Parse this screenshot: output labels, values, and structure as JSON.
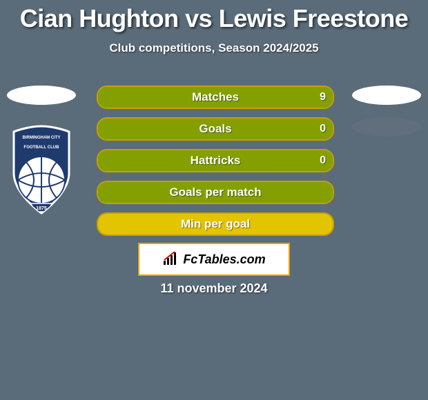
{
  "title": "Cian Hughton vs Lewis Freestone",
  "subtitle": "Club competitions, Season 2024/2025",
  "date": "11 november 2024",
  "watermark": "FcTables.com",
  "colors": {
    "background": "#5a6c7a",
    "ellipse_light": "#ffffff",
    "ellipse_dark": "#606f7b",
    "text": "#ffffff",
    "watermark_border": "#f0a000",
    "watermark_bg": "#ffffff"
  },
  "crest": {
    "name": "birmingham-city-fc",
    "text_top": "BIRMINGHAM CITY",
    "text_bottom": "FOOTBALL CLUB",
    "year": "1875",
    "primary": "#1f3b6e",
    "secondary": "#ffffff"
  },
  "rows": [
    {
      "label": "Matches",
      "value": "9",
      "show_value": true,
      "fill_pct": 100,
      "border_color": "#c7a000",
      "fill_color": "#84a000",
      "left_ellipse": true,
      "right_ellipse": "light"
    },
    {
      "label": "Goals",
      "value": "0",
      "show_value": true,
      "fill_pct": 100,
      "border_color": "#c7a000",
      "fill_color": "#84a000",
      "left_ellipse": false,
      "right_ellipse": "dark"
    },
    {
      "label": "Hattricks",
      "value": "0",
      "show_value": true,
      "fill_pct": 100,
      "border_color": "#c7a000",
      "fill_color": "#84a000",
      "left_ellipse": false,
      "right_ellipse": "none"
    },
    {
      "label": "Goals per match",
      "value": "",
      "show_value": false,
      "fill_pct": 100,
      "border_color": "#c7a000",
      "fill_color": "#84a000",
      "left_ellipse": false,
      "right_ellipse": "none"
    },
    {
      "label": "Min per goal",
      "value": "",
      "show_value": false,
      "fill_pct": 100,
      "border_color": "#c7a000",
      "fill_color": "#e3c400",
      "left_ellipse": false,
      "right_ellipse": "none"
    }
  ]
}
